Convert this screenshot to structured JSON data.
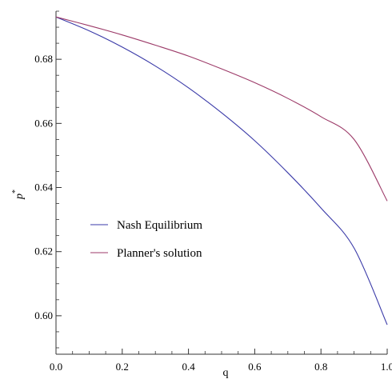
{
  "chart_data": {
    "type": "line",
    "title": "",
    "xlabel": "q",
    "ylabel": "p",
    "ylabel_superscript": "*",
    "xlim": [
      0.0,
      1.0
    ],
    "ylim": [
      0.588,
      0.695
    ],
    "xticks": [
      0.0,
      0.2,
      0.4,
      0.6,
      0.8,
      1.0
    ],
    "xtick_labels": [
      "0.0",
      "0.2",
      "0.4",
      "0.6",
      "0.8",
      "1.0"
    ],
    "yticks": [
      0.6,
      0.62,
      0.64,
      0.66,
      0.68
    ],
    "ytick_labels": [
      "0.60",
      "0.62",
      "0.64",
      "0.66",
      "0.68"
    ],
    "grid": false,
    "legend_position": "center-left",
    "x": [
      0.0,
      0.1,
      0.2,
      0.3,
      0.4,
      0.5,
      0.6,
      0.7,
      0.8,
      0.9,
      1.0
    ],
    "series": [
      {
        "name": "Nash Equilibrium",
        "color": "#3a3aa8",
        "values": [
          0.6932,
          0.6889,
          0.6838,
          0.6779,
          0.6711,
          0.6633,
          0.6546,
          0.6446,
          0.6336,
          0.6211,
          0.5972
        ]
      },
      {
        "name": "Planner's solution",
        "color": "#9c3a68",
        "values": [
          0.6932,
          0.6905,
          0.6876,
          0.6844,
          0.681,
          0.677,
          0.6727,
          0.6678,
          0.6621,
          0.655,
          0.6358
        ]
      }
    ]
  }
}
